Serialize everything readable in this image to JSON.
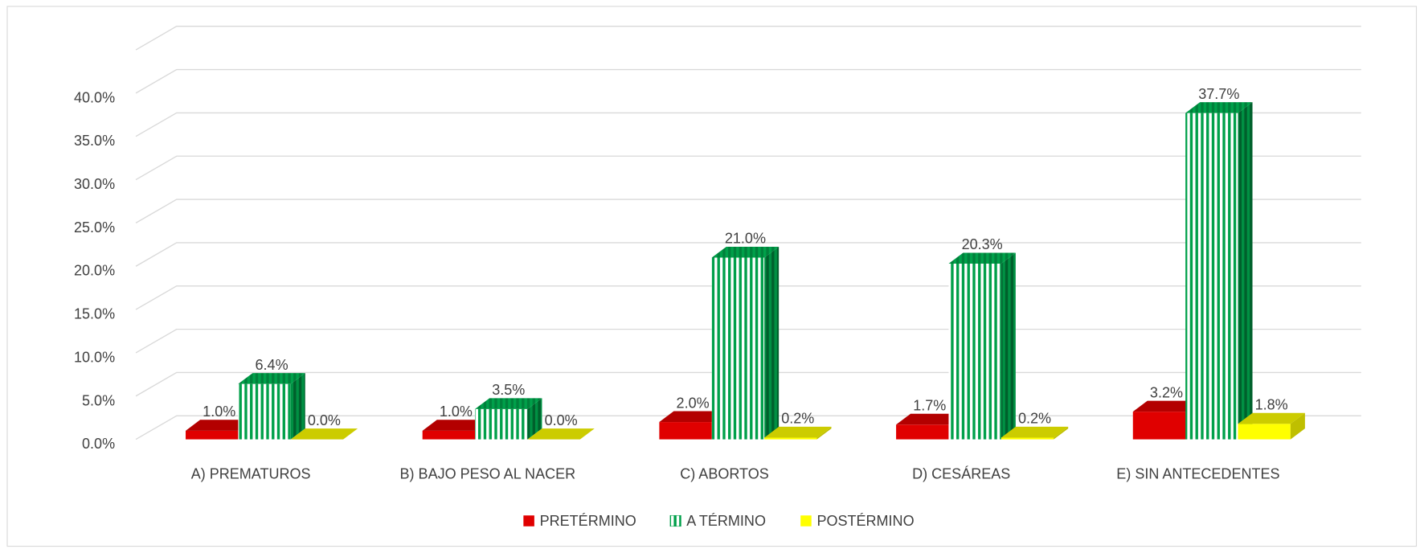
{
  "chart_data": {
    "type": "bar3d",
    "categories": [
      "A) PREMATUROS",
      "B) BAJO PESO AL NACER",
      "C) ABORTOS",
      "D) CESÁREAS",
      "E) SIN ANTECEDENTES"
    ],
    "series": [
      {
        "name": "PRETÉRMINO",
        "color": "#e00000",
        "values": [
          1.0,
          1.0,
          2.0,
          1.7,
          3.2
        ],
        "value_labels": [
          "1.0%",
          "1.0%",
          "2.0%",
          "1.7%",
          "3.2%"
        ]
      },
      {
        "name": "A TÉRMINO",
        "color": "#00a04a",
        "hatch": "vertical",
        "values": [
          6.4,
          3.5,
          21.0,
          20.3,
          37.7
        ],
        "value_labels": [
          "6.4%",
          "3.5%",
          "21.0%",
          "20.3%",
          "37.7%"
        ]
      },
      {
        "name": "POSTÉRMINO",
        "color": "#ffff00",
        "values": [
          0.0,
          0.0,
          0.2,
          0.2,
          1.8
        ],
        "value_labels": [
          "0.0%",
          "0.0%",
          "0.2%",
          "0.2%",
          "1.8%"
        ]
      }
    ],
    "ylim": [
      0,
      45
    ],
    "yticks": [
      {
        "value": 0,
        "label": "0.0%"
      },
      {
        "value": 5,
        "label": "5.0%"
      },
      {
        "value": 10,
        "label": "10.0%"
      },
      {
        "value": 15,
        "label": "15.0%"
      },
      {
        "value": 20,
        "label": "20.0%"
      },
      {
        "value": 25,
        "label": "25.0%"
      },
      {
        "value": 30,
        "label": "30.0%"
      },
      {
        "value": 35,
        "label": "35.0%"
      },
      {
        "value": 40,
        "label": "40.0%"
      }
    ],
    "grid": true,
    "legend": "bottom"
  }
}
